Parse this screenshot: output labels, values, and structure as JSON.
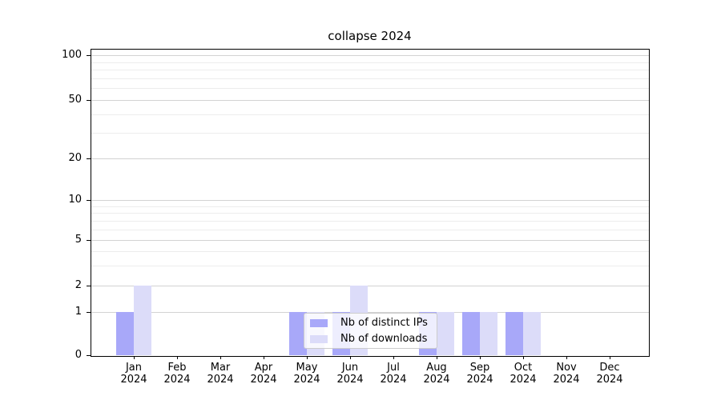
{
  "title": "collapse 2024",
  "chart_data": {
    "type": "bar",
    "title": "collapse 2024",
    "categories": [
      "Jan",
      "Feb",
      "Mar",
      "Apr",
      "May",
      "Jun",
      "Jul",
      "Aug",
      "Sep",
      "Oct",
      "Nov",
      "Dec"
    ],
    "year": "2024",
    "series": [
      {
        "name": "Nb of distinct IPs",
        "color": "#a8a8f9",
        "values": [
          1,
          0,
          0,
          0,
          1,
          1,
          0,
          1,
          1,
          1,
          0,
          0
        ]
      },
      {
        "name": "Nb of downloads",
        "color": "#dcdcf9",
        "values": [
          2,
          0,
          0,
          0,
          1,
          2,
          0,
          1,
          1,
          1,
          0,
          0
        ]
      }
    ],
    "xlabel": "",
    "ylabel": "",
    "y_axis": {
      "scale": "symlog",
      "major_ticks": [
        0,
        1,
        2,
        5,
        10,
        20,
        50,
        100
      ],
      "minor_gridlines": [
        3,
        4,
        6,
        7,
        8,
        9,
        30,
        40,
        60,
        70,
        80,
        90
      ],
      "ylim": [
        0,
        110
      ]
    },
    "grid": true,
    "legend": {
      "position": "lower center",
      "entries": [
        "Nb of distinct IPs",
        "Nb of downloads"
      ]
    }
  }
}
